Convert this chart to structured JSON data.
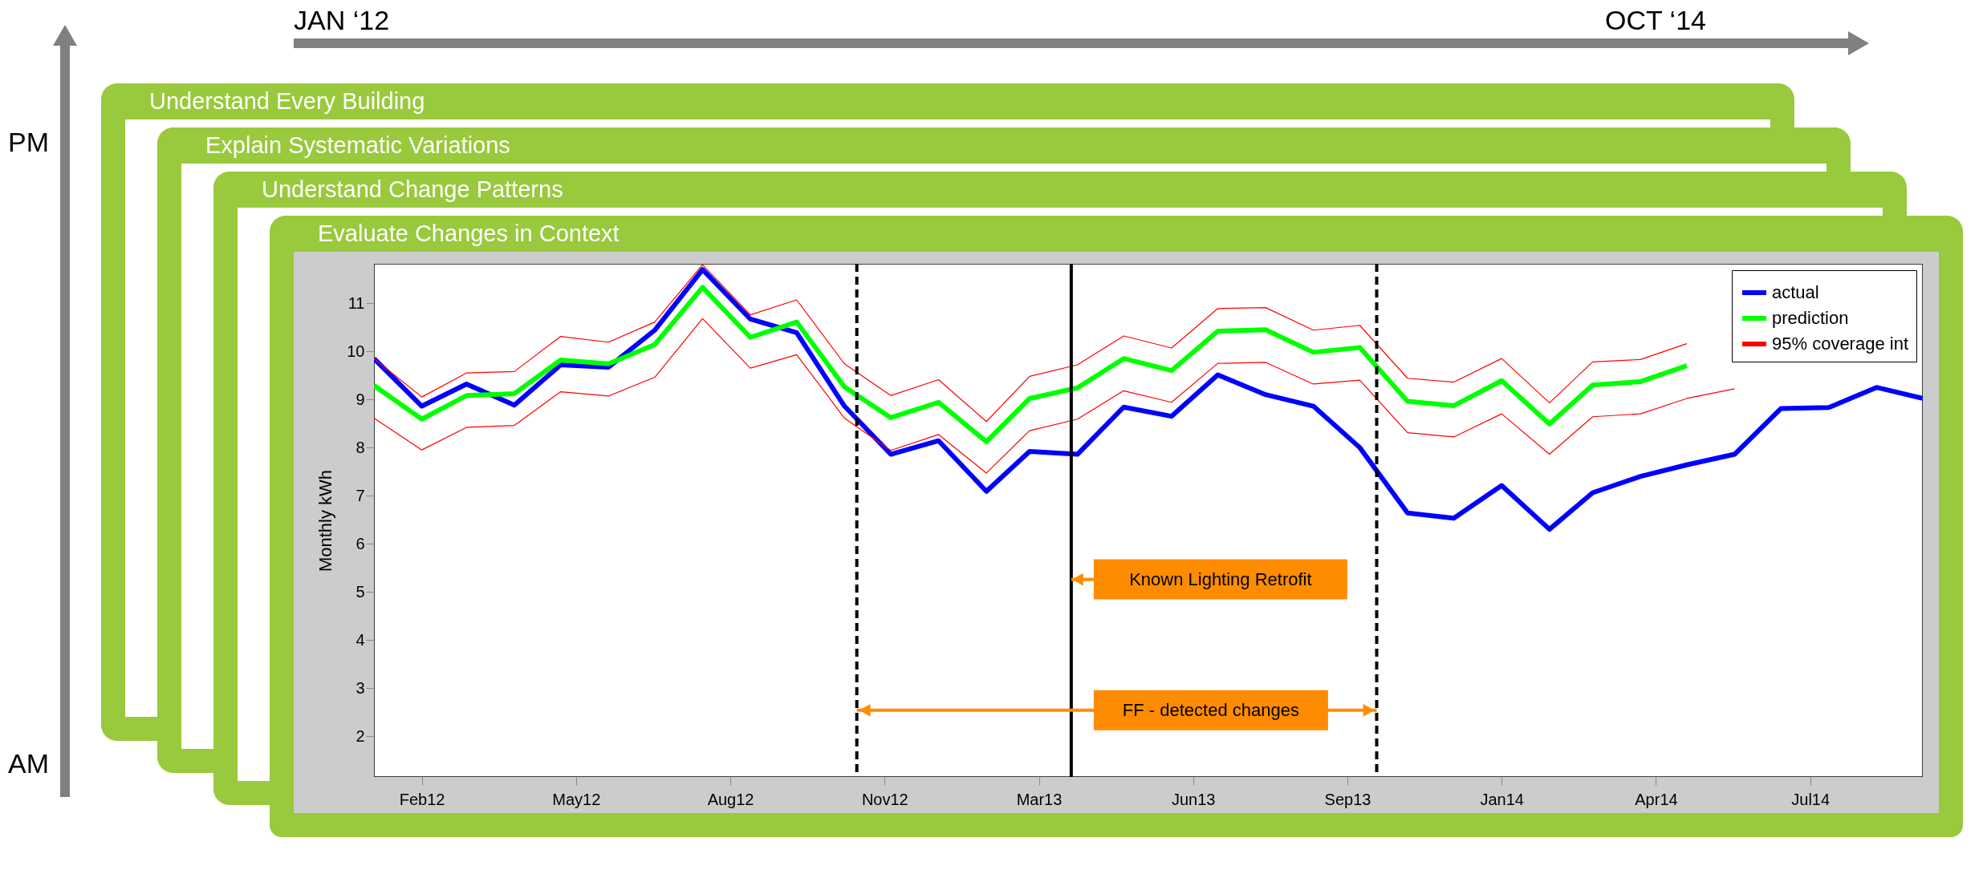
{
  "chart_data": {
    "type": "line",
    "title": "Evaluate Changes in Context",
    "ylabel": "Monthly kWh",
    "x": [
      "2012-01",
      "2012-02",
      "2012-03",
      "2012-04",
      "2012-05",
      "2012-06",
      "2012-07",
      "2012-08",
      "2012-09",
      "2012-10",
      "2012-11",
      "2012-12",
      "2013-01",
      "2013-02",
      "2013-03",
      "2013-04",
      "2013-05",
      "2013-06",
      "2013-07",
      "2013-08",
      "2013-09",
      "2013-10",
      "2013-11",
      "2013-12",
      "2014-01",
      "2014-02",
      "2014-03",
      "2014-04",
      "2014-05",
      "2014-06",
      "2014-07",
      "2014-08",
      "2014-09",
      "2014-10"
    ],
    "series": [
      {
        "name": "actual",
        "color": "#0000ff",
        "values": [
          9.85,
          8.86,
          9.32,
          8.88,
          9.72,
          9.67,
          10.44,
          11.7,
          10.67,
          10.39,
          8.86,
          7.86,
          8.14,
          7.09,
          7.92,
          7.86,
          8.84,
          8.65,
          9.51,
          9.1,
          8.86,
          8.0,
          6.64,
          6.53,
          7.21,
          6.3,
          7.06,
          7.4,
          7.64,
          7.86,
          8.81,
          8.83,
          9.25,
          9.02
        ]
      },
      {
        "name": "prediction",
        "color": "#00ff00",
        "values": [
          9.29,
          8.59,
          9.08,
          9.12,
          9.82,
          9.74,
          10.14,
          11.33,
          10.29,
          10.61,
          9.26,
          8.62,
          8.94,
          8.12,
          9.02,
          9.24,
          9.85,
          9.6,
          10.42,
          10.45,
          9.98,
          10.08,
          8.96,
          8.87,
          9.39,
          8.49,
          9.3,
          9.37,
          9.7,
          null,
          null,
          null,
          null,
          null
        ]
      },
      {
        "name": "95% coverage int",
        "color": "#ff0000",
        "values": [
          9.85,
          9.05,
          9.55,
          9.58,
          10.31,
          10.19,
          10.61,
          11.8,
          10.76,
          11.07,
          9.74,
          9.08,
          9.41,
          8.54,
          9.48,
          9.72,
          10.32,
          10.07,
          10.89,
          10.91,
          10.44,
          10.54,
          9.44,
          9.36,
          9.85,
          8.93,
          9.78,
          9.83,
          10.16,
          null,
          null,
          null,
          null,
          null
        ]
      },
      {
        "color": "#ff0000",
        "values": [
          8.61,
          7.95,
          8.42,
          8.46,
          9.16,
          9.07,
          9.46,
          10.68,
          9.65,
          9.93,
          8.61,
          7.94,
          8.27,
          7.47,
          8.35,
          8.59,
          9.18,
          8.94,
          9.75,
          9.77,
          9.32,
          9.4,
          8.31,
          8.22,
          8.7,
          7.86,
          8.64,
          8.7,
          9.02,
          9.22,
          null,
          null,
          null,
          null
        ]
      }
    ],
    "xlim": [
      "2012-01",
      "2014-10"
    ],
    "xticks": [
      {
        "value": "2012-02-01",
        "label": "Feb12"
      },
      {
        "value": "2012-05-11",
        "label": "May12"
      },
      {
        "value": "2012-08-19",
        "label": "Aug12"
      },
      {
        "value": "2012-11-27",
        "label": "Nov12"
      },
      {
        "value": "2013-03-07",
        "label": "Mar13"
      },
      {
        "value": "2013-06-15",
        "label": "Jun13"
      },
      {
        "value": "2013-09-23",
        "label": "Sep13"
      },
      {
        "value": "2014-01-01",
        "label": "Jan14"
      },
      {
        "value": "2014-04-11",
        "label": "Apr14"
      },
      {
        "value": "2014-07-20",
        "label": "Jul14"
      }
    ],
    "ylim": [
      1.15,
      11.82
    ],
    "yticks": [
      2,
      3,
      4,
      5,
      6,
      7,
      8,
      9,
      10,
      11
    ],
    "grid": false,
    "legend": "top right",
    "ref_lines": [
      {
        "axis": "x",
        "value": "2012-11-09",
        "color": "#000000",
        "line_style": "dashed"
      },
      {
        "axis": "x",
        "value": "2013-03-28",
        "color": "#000000",
        "line_style": "solid"
      },
      {
        "axis": "x",
        "value": "2013-10-12",
        "color": "#000000",
        "line_style": "dashed"
      }
    ],
    "annotations": [
      "Known Lighting Retrofit",
      "FF - detected changes",
      "JAN ‘12",
      "OCT ‘14",
      "PM",
      "AM",
      "Understand Every Building",
      "Explain Systematic Variations",
      "Understand Change Patterns"
    ]
  }
}
